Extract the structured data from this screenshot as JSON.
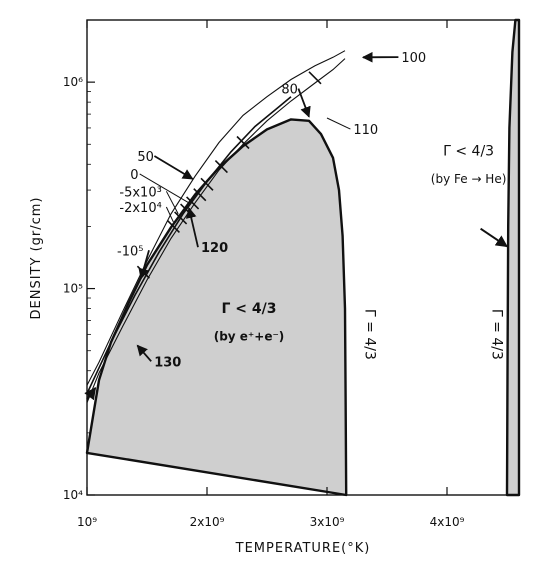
{
  "chart_data": {
    "type": "line",
    "xlabel": "TEMPERATURE(°K)",
    "ylabel": "DENSITY (gr/cm)",
    "x_scale": "linear",
    "y_scale": "log",
    "xlim": [
      1000000000.0,
      4600000000.0
    ],
    "ylim": [
      10000.0,
      2000000.0
    ],
    "x_ticks": [
      {
        "value": 1000000000.0,
        "label": "10⁹"
      },
      {
        "value": 2000000000.0,
        "label": "2x10⁹"
      },
      {
        "value": 3000000000.0,
        "label": "3x10⁹"
      },
      {
        "value": 4000000000.0,
        "label": "4x10⁹"
      }
    ],
    "y_ticks": [
      {
        "value": 10000.0,
        "label": "10⁴"
      },
      {
        "value": 100000.0,
        "label": "10⁵"
      },
      {
        "value": 1000000.0,
        "label": "10⁶"
      }
    ],
    "regions": [
      {
        "name": "pair",
        "label_line1": "Γ < 4/3",
        "label_line2": "(by e⁺+e⁻)",
        "color": "#cfcfcf",
        "boundary": [
          [
            1000000000.0,
            16000.0
          ],
          [
            1050000000.0,
            24000.0
          ],
          [
            1100000000.0,
            36000.0
          ],
          [
            1200000000.0,
            55000.0
          ],
          [
            1350000000.0,
            86000.0
          ],
          [
            1500000000.0,
            130000.0
          ],
          [
            1700000000.0,
            198000.0
          ],
          [
            1900000000.0,
            285000.0
          ],
          [
            2100000000.0,
            385000.0
          ],
          [
            2300000000.0,
            490000.0
          ],
          [
            2500000000.0,
            590000.0
          ],
          [
            2700000000.0,
            660000.0
          ],
          [
            2850000000.0,
            650000.0
          ],
          [
            2950000000.0,
            560000.0
          ],
          [
            3050000000.0,
            430000.0
          ],
          [
            3100000000.0,
            300000.0
          ],
          [
            3130000000.0,
            180000.0
          ],
          [
            3150000000.0,
            80000.0
          ],
          [
            3155000000.0,
            30000.0
          ],
          [
            3160000000.0,
            10000.0
          ]
        ]
      },
      {
        "name": "iron",
        "label_line1": "Γ < 4/3",
        "label_line2": "(by Fe → He)",
        "color": "#cfcfcf",
        "boundary": [
          [
            4500000000.0,
            10000.0
          ],
          [
            4505000000.0,
            50000.0
          ],
          [
            4510000000.0,
            200000.0
          ],
          [
            4520000000.0,
            600000.0
          ],
          [
            4545000000.0,
            1400000.0
          ],
          [
            4570000000.0,
            2000000.0
          ]
        ]
      }
    ],
    "boundary_labels": [
      {
        "text": "Γ = 4/3",
        "x": 3320000000.0,
        "y": 60000.0
      },
      {
        "text": "Γ = 4/3",
        "x": 4380000000.0,
        "y": 60000.0
      }
    ],
    "series": [
      {
        "name": "track_upper",
        "values": [
          [
            1000000000.0,
            34000.0
          ],
          [
            1100000000.0,
            44000.0
          ],
          [
            1300000000.0,
            78000.0
          ],
          [
            1500000000.0,
            136000.0
          ],
          [
            1700000000.0,
            230000.0
          ],
          [
            1900000000.0,
            350000.0
          ],
          [
            2100000000.0,
            510000.0
          ],
          [
            2300000000.0,
            690000.0
          ],
          [
            2500000000.0,
            850000.0
          ],
          [
            2700000000.0,
            1030000.0
          ],
          [
            2900000000.0,
            1200000.0
          ],
          [
            3050000000.0,
            1320000.0
          ],
          [
            3150000000.0,
            1420000.0
          ]
        ]
      },
      {
        "name": "track_lower",
        "values": [
          [
            1000000000.0,
            28000.0
          ],
          [
            1100000000.0,
            39000.0
          ],
          [
            1300000000.0,
            66000.0
          ],
          [
            1500000000.0,
            110000.0
          ],
          [
            1700000000.0,
            175000.0
          ],
          [
            1900000000.0,
            260000.0
          ],
          [
            2100000000.0,
            375000.0
          ],
          [
            2300000000.0,
            500000.0
          ],
          [
            2500000000.0,
            650000.0
          ],
          [
            2700000000.0,
            810000.0
          ],
          [
            2900000000.0,
            990000.0
          ],
          [
            3050000000.0,
            1150000.0
          ],
          [
            3150000000.0,
            1300000.0
          ]
        ]
      },
      {
        "name": "track_middle",
        "values": [
          [
            1000000000.0,
            31000.0
          ],
          [
            1200000000.0,
            55000.0
          ],
          [
            1400000000.0,
            93000.0
          ],
          [
            1600000000.0,
            150000.0
          ],
          [
            1800000000.0,
            230000.0
          ],
          [
            2000000000.0,
            330000.0
          ],
          [
            2200000000.0,
            460000.0
          ],
          [
            2400000000.0,
            610000.0
          ],
          [
            2600000000.0,
            760000.0
          ],
          [
            2700000000.0,
            850000.0
          ]
        ]
      }
    ],
    "track_ticks": [
      [
        1470000000.0,
        120000.0
      ],
      [
        1720000000.0,
        200000.0
      ],
      [
        1780000000.0,
        220000.0
      ],
      [
        1830000000.0,
        240000.0
      ],
      [
        1880000000.0,
        260000.0
      ],
      [
        1940000000.0,
        285000.0
      ],
      [
        2000000000.0,
        320000.0
      ],
      [
        2120000000.0,
        390000.0
      ],
      [
        2300000000.0,
        510000.0
      ],
      [
        2900000000.0,
        1050000.0
      ]
    ],
    "annotations": [
      {
        "text": "-10⁵",
        "style": "normal",
        "x": 1250000000.0,
        "y": 145000.0,
        "target": [
          1450000000.0,
          112000.0
        ],
        "arrow": true
      },
      {
        "text": "-2x10⁴",
        "style": "normal",
        "x": 1270000000.0,
        "y": 235000.0,
        "target": [
          1720000000.0,
          210000.0
        ],
        "arrow": false
      },
      {
        "text": "-5x10³",
        "style": "normal",
        "x": 1270000000.0,
        "y": 280000.0,
        "target": [
          1760000000.0,
          230000.0
        ],
        "arrow": false
      },
      {
        "text": "0",
        "style": "normal",
        "x": 1360000000.0,
        "y": 340000.0,
        "target": [
          1850000000.0,
          260000.0
        ],
        "arrow": false
      },
      {
        "text": "50",
        "style": "normal",
        "x": 1420000000.0,
        "y": 415000.0,
        "target": [
          1880000000.0,
          340000.0
        ],
        "arrow": true
      },
      {
        "text": "80",
        "style": "normal",
        "x": 2620000000.0,
        "y": 880000.0,
        "target": [
          2850000000.0,
          680000.0
        ],
        "arrow": true
      },
      {
        "text": "100",
        "style": "normal",
        "x": 3620000000.0,
        "y": 1250000.0,
        "target": [
          3300000000.0,
          1320000.0
        ],
        "arrow": true
      },
      {
        "text": "110",
        "style": "normal",
        "x": 3220000000.0,
        "y": 560000.0,
        "target": [
          3000000000.0,
          670000.0
        ],
        "arrow": false
      },
      {
        "text": "120",
        "style": "bold",
        "x": 1950000000.0,
        "y": 150000.0,
        "target": [
          1850000000.0,
          245000.0
        ],
        "arrow": true
      },
      {
        "text": "130",
        "style": "bold",
        "x": 1560000000.0,
        "y": 42000.0,
        "target": [
          1420000000.0,
          53000.0
        ],
        "arrow": true
      }
    ],
    "entry_arrow": {
      "from": [
        1000000000.0,
        29000.0
      ],
      "to": [
        1070000000.0,
        33000.0
      ]
    },
    "fe_arrow": {
      "from": [
        4280000000.0,
        195000.0
      ],
      "to": [
        4500000000.0,
        160000.0
      ]
    },
    "grid": false,
    "legend": "none"
  }
}
